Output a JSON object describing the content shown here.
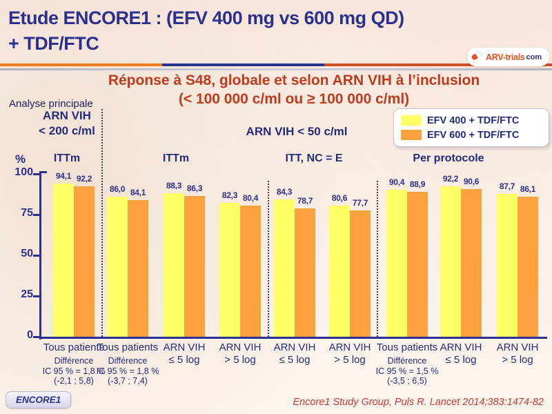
{
  "header": {
    "title_line1": "Etude ENCORE1 : (EFV 400 mg vs 600 mg QD)",
    "title_line2": "+ TDF/FTC",
    "logo_text": "ARV-trials",
    "logo_suffix": "com"
  },
  "subtitle": {
    "line1": "Réponse à S48, globale et selon ARN VIH à l’inclusion",
    "line2": "(< 100 000 c/ml ou ≥ 100 000 c/ml)"
  },
  "annotations": {
    "analysis_note": "Analyse principale",
    "section1_line1": "ARN VIH",
    "section1_line2": "< 200 c/ml",
    "section2": "ARN VIH < 50 c/ml"
  },
  "legend": {
    "items": [
      {
        "label": "EFV 400 + TDF/FTC",
        "color": "#FFFF66"
      },
      {
        "label": "EFV 600 + TDF/FTC",
        "color": "#FBA13E"
      }
    ]
  },
  "chart_data": {
    "type": "bar",
    "title": "Réponse à S48, globale et selon ARN VIH à l’inclusion (< 100 000 c/ml ou ≥ 100 000 c/ml)",
    "ylabel": "%",
    "ylim": [
      0,
      100
    ],
    "yticks": [
      0,
      25,
      50,
      75,
      100
    ],
    "grid": false,
    "legend_position": "top-right",
    "sections": [
      "ARN VIH < 200 c/ml",
      "ARN VIH < 50 c/ml"
    ],
    "group_labels": [
      "ITTm",
      "ITTm",
      "ITT, NC = E",
      "Per protocole"
    ],
    "categories": [
      [
        "Tous patients"
      ],
      [
        "Tous patients"
      ],
      [
        "ARN VIH",
        "≤ 5 log"
      ],
      [
        "ARN VIH",
        "> 5 log"
      ],
      [
        "ARN VIH",
        "≤ 5 log"
      ],
      [
        "ARN VIH",
        "> 5 log"
      ],
      [
        "Tous patients"
      ],
      [
        "ARN VIH",
        "≤ 5 log"
      ],
      [
        "ARN VIH",
        "> 5 log"
      ]
    ],
    "series": [
      {
        "name": "EFV 400 + TDF/FTC",
        "color": "#FFFF66",
        "values": [
          94.1,
          86.0,
          88.3,
          82.3,
          84.3,
          80.6,
          90.4,
          92.2,
          87.7
        ],
        "labels": [
          "94,1",
          "86,0",
          "88,3",
          "82,3",
          "84,3",
          "80,6",
          "90,4",
          "92,2",
          "87,7"
        ]
      },
      {
        "name": "EFV 600 + TDF/FTC",
        "color": "#FBA13E",
        "values": [
          92.2,
          84.1,
          86.3,
          80.4,
          78.7,
          77.7,
          88.9,
          90.6,
          86.1
        ],
        "labels": [
          "92,2",
          "84,1",
          "86,3",
          "80,4",
          "78,7",
          "77,7",
          "88,9",
          "90,6",
          "86,1"
        ]
      }
    ],
    "differences": [
      {
        "pair": 0,
        "lines": [
          "Différence",
          "IC 95 % = 1,8 %",
          "(-2,1 ; 5,8)"
        ]
      },
      {
        "pair": 1,
        "lines": [
          "Différence",
          "IC 95 % = 1,8 %",
          "(-3,7 ; 7,4)"
        ]
      },
      {
        "pair": 6,
        "lines": [
          "Différence",
          "IC 95 % = 1,5 %",
          "(-3,5 ; 6,5)"
        ]
      }
    ]
  },
  "footer": {
    "badge": "ENCORE1",
    "citation": "Encore1 Study Group, Puls R. Lancet 2014;383:1474-82"
  }
}
